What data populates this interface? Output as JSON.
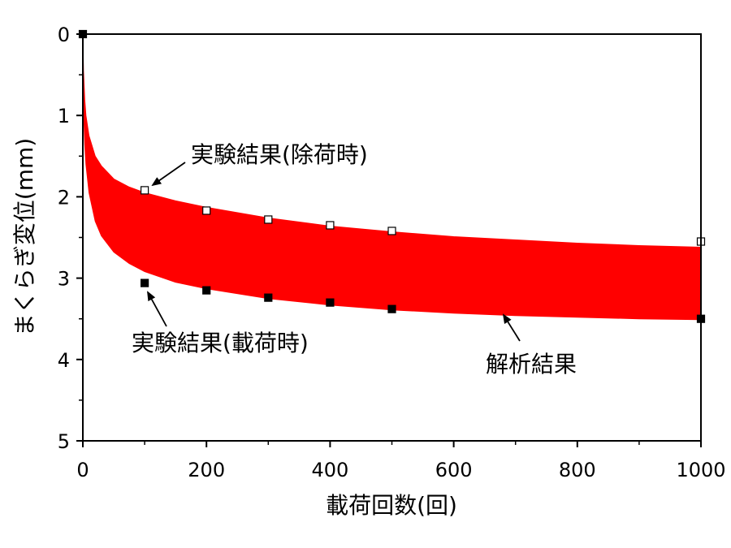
{
  "chart_data": {
    "type": "scatter",
    "xlabel": "載荷回数(回)",
    "ylabel": "まくらぎ変位(mm)",
    "xlim": [
      0,
      1000
    ],
    "ylim": [
      0,
      5
    ],
    "y_inverted": true,
    "x_ticks": [
      "0",
      "200",
      "400",
      "600",
      "800",
      "1000"
    ],
    "y_ticks": [
      "0",
      "1",
      "2",
      "3",
      "4",
      "5"
    ],
    "grid": false,
    "band": {
      "name": "解析結果",
      "color": "#ff0000",
      "upper": {
        "x": [
          0,
          1,
          3,
          5,
          10,
          20,
          30,
          50,
          75,
          100,
          150,
          200,
          300,
          400,
          500,
          600,
          700,
          800,
          900,
          1000
        ],
        "y": [
          0,
          0.45,
          0.8,
          1.0,
          1.25,
          1.5,
          1.62,
          1.78,
          1.88,
          1.95,
          2.05,
          2.13,
          2.26,
          2.36,
          2.43,
          2.49,
          2.53,
          2.57,
          2.6,
          2.62
        ]
      },
      "lower": {
        "x": [
          0,
          1,
          3,
          5,
          10,
          20,
          30,
          50,
          75,
          100,
          150,
          200,
          300,
          400,
          500,
          600,
          700,
          800,
          900,
          1000
        ],
        "y": [
          0,
          0.9,
          1.35,
          1.6,
          1.95,
          2.3,
          2.48,
          2.68,
          2.82,
          2.92,
          3.05,
          3.13,
          3.25,
          3.33,
          3.39,
          3.43,
          3.46,
          3.48,
          3.5,
          3.51
        ]
      }
    },
    "series": [
      {
        "name": "実験結果(除荷時)",
        "marker": "open-square",
        "x": [
          100,
          200,
          300,
          400,
          500,
          1000
        ],
        "y": [
          1.92,
          2.17,
          2.28,
          2.35,
          2.42,
          2.55
        ]
      },
      {
        "name": "実験結果(載荷時)",
        "marker": "filled-square",
        "x": [
          0,
          100,
          200,
          300,
          400,
          500,
          1000
        ],
        "y": [
          0,
          3.06,
          3.15,
          3.24,
          3.3,
          3.38,
          3.5
        ]
      }
    ],
    "annotations": [
      {
        "text": "実験結果(除荷時)",
        "points_to": "実験結果(除荷時)"
      },
      {
        "text": "実験結果(載荷時)",
        "points_to": "実験結果(載荷時)"
      },
      {
        "text": "解析結果",
        "points_to": "解析結果"
      }
    ]
  }
}
